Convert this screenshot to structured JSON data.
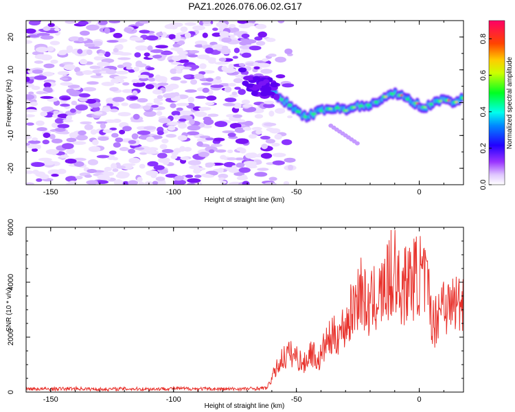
{
  "chart_data": [
    {
      "type": "heatmap",
      "title": "PAZ1.2026.076.06.02.G17",
      "xlabel": "Height of straight line (km)",
      "ylabel": "Frequency (Hz)",
      "xlim": [
        -160,
        18
      ],
      "ylim": [
        -25,
        25
      ],
      "x_ticks": [
        -150,
        -100,
        -50,
        0
      ],
      "x_tick_labels": [
        "-150",
        "-100",
        "-50",
        "0"
      ],
      "y_ticks": [
        -20,
        -10,
        0,
        10,
        20
      ],
      "y_tick_labels": [
        "-20",
        "-10",
        "0",
        "10",
        "20"
      ],
      "noise_region_x": [
        -160,
        -60
      ],
      "signal_ridge": {
        "x": [
          -62,
          -58,
          -54,
          -50,
          -46,
          -42,
          -38,
          -34,
          -30,
          -26,
          -22,
          -18,
          -14,
          -10,
          -6,
          -2,
          2,
          6,
          10,
          14,
          18
        ],
        "y": [
          5,
          2,
          0,
          -2.5,
          -4.5,
          -3,
          -2,
          -1.5,
          -2.5,
          -1,
          -1,
          0,
          2,
          3,
          1.5,
          0,
          -1.5,
          0,
          1,
          0,
          1.5
        ]
      },
      "colorbar": {
        "label": "Normalized spectral amplitude",
        "range": [
          0,
          0.9
        ],
        "ticks": [
          0,
          0.2,
          0.4,
          0.6,
          0.8
        ],
        "tick_labels": [
          "0.0",
          "0.2",
          "0.4",
          "0.6",
          "0.8"
        ],
        "colors": [
          "#ffffff",
          "#cc99ff",
          "#7700ff",
          "#0000ff",
          "#00ddff",
          "#00ff44",
          "#ffee00",
          "#ff8800",
          "#ff0000",
          "#ff0066"
        ]
      }
    },
    {
      "type": "line",
      "xlabel": "Height of straight line (km)",
      "ylabel": "SNR (10 * v/v)",
      "xlim": [
        -160,
        18
      ],
      "ylim": [
        0,
        6000
      ],
      "x_ticks": [
        -150,
        -100,
        -50,
        0
      ],
      "x_tick_labels": [
        "-150",
        "-100",
        "-50",
        "0"
      ],
      "y_ticks": [
        0,
        2000,
        4000,
        6000
      ],
      "y_tick_labels": [
        "0",
        "2000",
        "4000",
        "6000"
      ],
      "series": [
        {
          "name": "SNR",
          "color": "#e8312b",
          "x": [
            -160,
            -150,
            -140,
            -130,
            -120,
            -110,
            -100,
            -90,
            -80,
            -70,
            -62,
            -59,
            -56,
            -53,
            -50,
            -47,
            -44,
            -41,
            -38,
            -35,
            -32,
            -29,
            -26,
            -24,
            -21,
            -18,
            -15,
            -12,
            -10,
            -8,
            -6,
            -3,
            0,
            3,
            6,
            8,
            10,
            12,
            14,
            16,
            18
          ],
          "values": [
            120,
            110,
            130,
            100,
            120,
            110,
            130,
            120,
            110,
            120,
            150,
            700,
            1200,
            1400,
            1300,
            1000,
            1500,
            1100,
            1800,
            2000,
            2200,
            2600,
            3300,
            3800,
            3000,
            3400,
            3600,
            4100,
            4500,
            3700,
            3900,
            4100,
            4300,
            3900,
            2400,
            3100,
            3500,
            3000,
            3300,
            3200,
            3500
          ]
        }
      ]
    }
  ]
}
